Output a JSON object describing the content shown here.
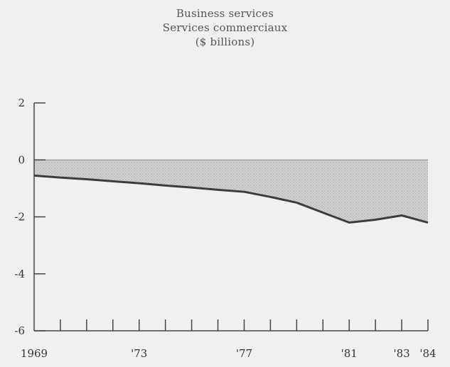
{
  "chart_data": {
    "type": "area",
    "title_lines": [
      "Business services",
      "Services commerciaux",
      "($ billions)"
    ],
    "x": [
      1969,
      1970,
      1971,
      1972,
      1973,
      1974,
      1975,
      1976,
      1977,
      1978,
      1979,
      1980,
      1981,
      1982,
      1983,
      1984
    ],
    "series": [
      {
        "values": [
          -0.55,
          -0.62,
          -0.68,
          -0.75,
          -0.82,
          -0.9,
          -0.97,
          -1.05,
          -1.12,
          -1.3,
          -1.5,
          -1.85,
          -2.2,
          -2.1,
          -1.95,
          -2.2
        ]
      }
    ],
    "x_tick_labels": [
      {
        "x": 1969,
        "label": "1969"
      },
      {
        "x": 1973,
        "label": "'73"
      },
      {
        "x": 1977,
        "label": "'77"
      },
      {
        "x": 1981,
        "label": "'81"
      },
      {
        "x": 1983,
        "label": "'83"
      },
      {
        "x": 1984,
        "label": "'84"
      }
    ],
    "y_ticks": [
      2,
      0,
      -2,
      -4,
      -6
    ],
    "ylim": [
      -6,
      2
    ],
    "xlim": [
      1969,
      1984
    ],
    "grid": false,
    "colors": {
      "fill": "#c8c8c8",
      "line": "#3d3d3d",
      "axis": "#444444"
    }
  }
}
